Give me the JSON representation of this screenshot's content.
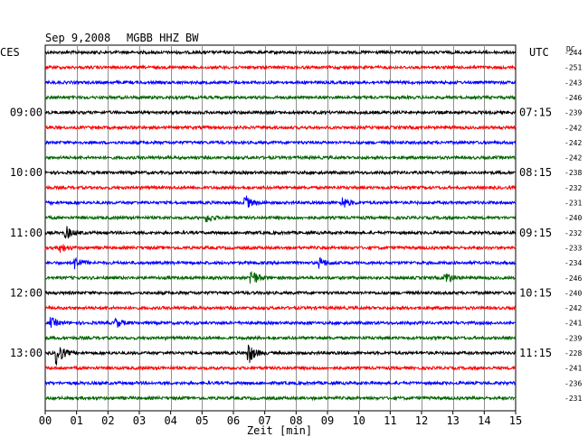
{
  "header": {
    "date": "Sep 9,2008",
    "station": "MGBB HHZ BW",
    "left_tz": "CES",
    "right_tz": "UTC",
    "offset_label": "DC"
  },
  "colors": [
    "#000000",
    "#ff0000",
    "#0000ff",
    "#006400"
  ],
  "chart_data": {
    "type": "line",
    "title": "Sep 9,2008   MGBB HHZ BW",
    "xlabel": "Zeit [min]",
    "xlim": [
      0,
      15
    ],
    "x_ticks": [
      "00",
      "01",
      "02",
      "03",
      "04",
      "05",
      "06",
      "07",
      "08",
      "09",
      "10",
      "11",
      "12",
      "13",
      "14",
      "15"
    ],
    "grid": true,
    "left_time_labels": [
      "09:00",
      "10:00",
      "11:00",
      "12:00",
      "13:00"
    ],
    "right_time_labels": [
      "07:15",
      "08:15",
      "09:15",
      "10:15",
      "11:15"
    ],
    "time_label_rows": [
      4,
      8,
      12,
      16,
      20
    ],
    "dc_offsets": [
      "-244",
      "-251",
      "-243",
      "-246",
      "-239",
      "-242",
      "-242",
      "-242",
      "-238",
      "-232",
      "-231",
      "-240",
      "-232",
      "-233",
      "-234",
      "-246",
      "-240",
      "-242",
      "-241",
      "-239",
      "-228",
      "-241",
      "-236",
      "-231"
    ],
    "traces": 24,
    "events": [
      {
        "row": 10,
        "minute": 6.4,
        "amplitude": 7
      },
      {
        "row": 10,
        "minute": 9.5,
        "amplitude": 6
      },
      {
        "row": 11,
        "minute": 5.2,
        "amplitude": 4
      },
      {
        "row": 12,
        "minute": 0.7,
        "amplitude": 6
      },
      {
        "row": 13,
        "minute": 0.5,
        "amplitude": 5
      },
      {
        "row": 14,
        "minute": 1.0,
        "amplitude": 6
      },
      {
        "row": 14,
        "minute": 8.8,
        "amplitude": 5
      },
      {
        "row": 15,
        "minute": 6.6,
        "amplitude": 9
      },
      {
        "row": 15,
        "minute": 12.8,
        "amplitude": 6
      },
      {
        "row": 18,
        "minute": 0.2,
        "amplitude": 5
      },
      {
        "row": 18,
        "minute": 2.3,
        "amplitude": 4
      },
      {
        "row": 20,
        "minute": 0.4,
        "amplitude": 12
      },
      {
        "row": 20,
        "minute": 6.5,
        "amplitude": 11
      }
    ]
  }
}
